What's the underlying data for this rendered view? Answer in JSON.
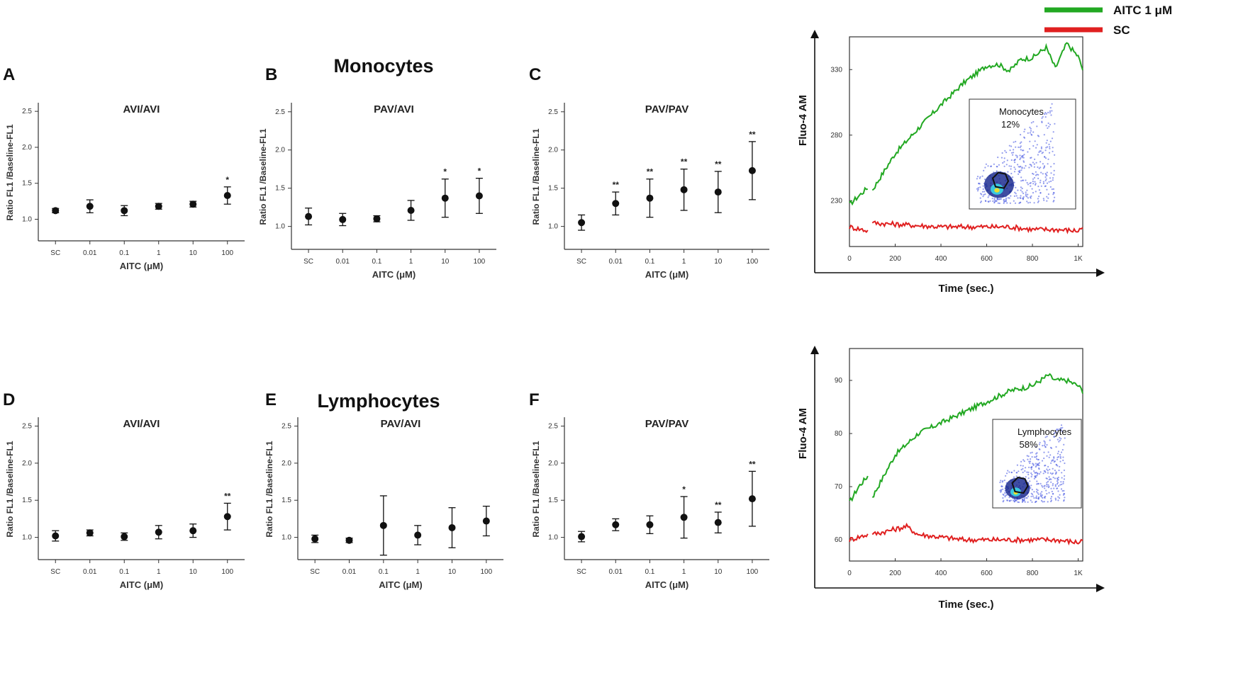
{
  "sections": {
    "monocytes": {
      "title": "Monocytes"
    },
    "lymphocytes": {
      "title": "Lymphocytes"
    }
  },
  "legend": {
    "items": [
      {
        "label": "AITC 1 μM",
        "color": "#22a822"
      },
      {
        "label": "SC",
        "color": "#e02020"
      }
    ]
  },
  "chart_data": [
    {
      "panel": "A",
      "type": "scatter",
      "title": "AVI/AVI",
      "xlabel": "AITC (μM)",
      "ylabel": "Ratio FL1 /Baseline-FL1",
      "categories": [
        "SC",
        "0.01",
        "0.1",
        "1",
        "10",
        "100"
      ],
      "yticks": [
        "1.0",
        "1.5",
        "2.0",
        "2.5"
      ],
      "ylim": [
        0.7,
        2.6
      ],
      "values": [
        1.12,
        1.18,
        1.12,
        1.18,
        1.21,
        1.33
      ],
      "errors": [
        0.03,
        0.09,
        0.07,
        0.04,
        0.04,
        0.12
      ],
      "significance": [
        "",
        "",
        "",
        "",
        "",
        "*"
      ]
    },
    {
      "panel": "B",
      "type": "scatter",
      "title": "PAV/AVI",
      "xlabel": "AITC (μM)",
      "ylabel": "Ratio FL1 /Baseline-FL1",
      "categories": [
        "SC",
        "0.01",
        "0.1",
        "1",
        "10",
        "100"
      ],
      "yticks": [
        "1.0",
        "1.5",
        "2.0",
        "2.5"
      ],
      "ylim": [
        0.7,
        2.6
      ],
      "values": [
        1.13,
        1.09,
        1.1,
        1.21,
        1.37,
        1.4
      ],
      "errors": [
        0.11,
        0.08,
        0.04,
        0.13,
        0.25,
        0.23
      ],
      "significance": [
        "",
        "",
        "",
        "",
        "*",
        "*"
      ]
    },
    {
      "panel": "C",
      "type": "scatter",
      "title": "PAV/PAV",
      "xlabel": "AITC (μM)",
      "ylabel": "Ratio FL1 /Baseline-FL1",
      "categories": [
        "SC",
        "0.01",
        "0.1",
        "1",
        "10",
        "100"
      ],
      "yticks": [
        "1.0",
        "1.5",
        "2.0",
        "2.5"
      ],
      "ylim": [
        0.7,
        2.6
      ],
      "values": [
        1.05,
        1.3,
        1.37,
        1.48,
        1.45,
        1.73
      ],
      "errors": [
        0.1,
        0.15,
        0.25,
        0.27,
        0.27,
        0.38
      ],
      "significance": [
        "",
        "**",
        "**",
        "**",
        "**",
        "**"
      ]
    },
    {
      "panel": "D",
      "type": "scatter",
      "title": "AVI/AVI",
      "xlabel": "AITC (μM)",
      "ylabel": "Ratio FL1 /Baseline-FL1",
      "categories": [
        "SC",
        "0.01",
        "0.1",
        "1",
        "10",
        "100"
      ],
      "yticks": [
        "1.0",
        "1.5",
        "2.0",
        "2.5"
      ],
      "ylim": [
        0.7,
        2.6
      ],
      "values": [
        1.02,
        1.06,
        1.01,
        1.07,
        1.09,
        1.28
      ],
      "errors": [
        0.07,
        0.04,
        0.05,
        0.09,
        0.09,
        0.18
      ],
      "significance": [
        "",
        "",
        "",
        "",
        "",
        "**"
      ]
    },
    {
      "panel": "E",
      "type": "scatter",
      "title": "PAV/AVI",
      "xlabel": "AITC (μM)",
      "ylabel": "Ratio FL1 /Baseline-FL1",
      "categories": [
        "SC",
        "0.01",
        "0.1",
        "1",
        "10",
        "100"
      ],
      "yticks": [
        "1.0",
        "1.5",
        "2.0",
        "2.5"
      ],
      "ylim": [
        0.7,
        2.6
      ],
      "values": [
        0.98,
        0.96,
        1.16,
        1.03,
        1.13,
        1.22
      ],
      "errors": [
        0.05,
        0.03,
        0.4,
        0.13,
        0.27,
        0.2
      ],
      "significance": [
        "",
        "",
        "",
        "",
        "",
        ""
      ]
    },
    {
      "panel": "F",
      "type": "scatter",
      "title": "PAV/PAV",
      "xlabel": "AITC (μM)",
      "ylabel": "Ratio FL1 /Baseline-FL1",
      "categories": [
        "SC",
        "0.01",
        "0.1",
        "1",
        "10",
        "100"
      ],
      "yticks": [
        "1.0",
        "1.5",
        "2.0",
        "2.5"
      ],
      "ylim": [
        0.7,
        2.6
      ],
      "values": [
        1.01,
        1.17,
        1.17,
        1.27,
        1.2,
        1.52
      ],
      "errors": [
        0.07,
        0.08,
        0.12,
        0.28,
        0.14,
        0.37
      ],
      "significance": [
        "",
        "",
        "",
        "*",
        "**",
        "**"
      ]
    },
    {
      "panel": "monocytes-trace",
      "type": "line",
      "xlabel": "Time (sec.)",
      "ylabel": "Fluo-4 AM",
      "xticks": [
        "0",
        "200",
        "400",
        "600",
        "800",
        "1K"
      ],
      "xlim": [
        0,
        1020
      ],
      "yticks": [
        "230",
        "280",
        "330"
      ],
      "ylim": [
        195,
        355
      ],
      "inset": {
        "label": "Monocytes",
        "percent": "12%"
      },
      "series": [
        {
          "name": "AITC 1 μM",
          "x": [
            0,
            80,
            100,
            200,
            300,
            400,
            500,
            600,
            650,
            700,
            750,
            800,
            860,
            900,
            950,
            1000,
            1020
          ],
          "y": [
            227,
            240,
            238,
            266,
            285,
            303,
            320,
            333,
            334,
            329,
            338,
            339,
            347,
            331,
            350,
            340,
            330
          ]
        },
        {
          "name": "SC",
          "x": [
            0,
            80,
            100,
            200,
            300,
            400,
            500,
            600,
            700,
            800,
            900,
            1000,
            1020
          ],
          "y": [
            210,
            207,
            213,
            212,
            211,
            210,
            210,
            210,
            210,
            208,
            208,
            207,
            210
          ]
        }
      ]
    },
    {
      "panel": "lymphocytes-trace",
      "type": "line",
      "xlabel": "Time (sec.)",
      "ylabel": "Fluo-4 AM",
      "xticks": [
        "0",
        "200",
        "400",
        "600",
        "800",
        "1K"
      ],
      "xlim": [
        0,
        1020
      ],
      "yticks": [
        "60",
        "70",
        "80",
        "90"
      ],
      "ylim": [
        56,
        96
      ],
      "inset": {
        "label": "Lymphocytes",
        "percent": "58%"
      },
      "series": [
        {
          "name": "AITC 1 μM",
          "x": [
            0,
            40,
            80,
            100,
            200,
            300,
            400,
            500,
            600,
            700,
            800,
            870,
            900,
            950,
            1000,
            1020
          ],
          "y": [
            67,
            70,
            72,
            68,
            76,
            80,
            82,
            84,
            86,
            88,
            89,
            91,
            90,
            90,
            89,
            88
          ]
        },
        {
          "name": "SC",
          "x": [
            0,
            80,
            100,
            250,
            300,
            400,
            500,
            600,
            700,
            800,
            900,
            1000,
            1020
          ],
          "y": [
            60,
            61,
            61,
            62.5,
            61,
            60.5,
            60,
            60,
            60,
            60,
            60,
            59.5,
            60
          ]
        }
      ]
    }
  ]
}
